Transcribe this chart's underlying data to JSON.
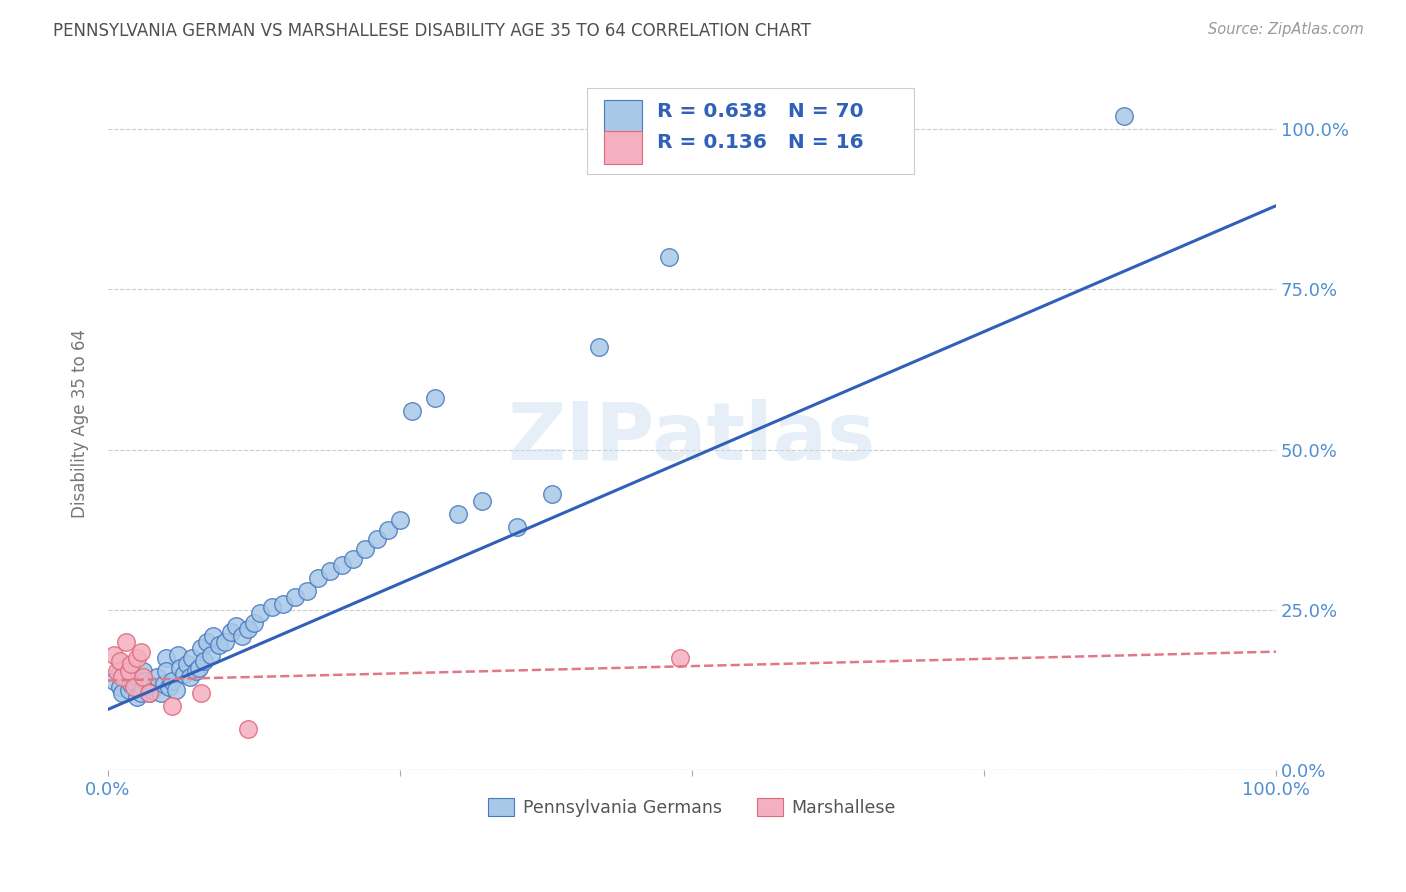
{
  "title": "PENNSYLVANIA GERMAN VS MARSHALLESE DISABILITY AGE 35 TO 64 CORRELATION CHART",
  "source": "Source: ZipAtlas.com",
  "ylabel": "Disability Age 35 to 64",
  "watermark": "ZIPatlas",
  "blue_R": 0.638,
  "blue_N": 70,
  "pink_R": 0.136,
  "pink_N": 16,
  "blue_color": "#a8c8e8",
  "pink_color": "#f4b0c0",
  "blue_edge_color": "#4878c0",
  "pink_edge_color": "#e06878",
  "blue_line_color": "#3060b8",
  "pink_line_color": "#e07888",
  "legend_label_blue": "Pennsylvania Germans",
  "legend_label_pink": "Marshallese",
  "blue_scatter_x": [
    0.005,
    0.01,
    0.01,
    0.012,
    0.015,
    0.015,
    0.018,
    0.02,
    0.02,
    0.022,
    0.025,
    0.025,
    0.028,
    0.03,
    0.03,
    0.032,
    0.035,
    0.035,
    0.038,
    0.04,
    0.042,
    0.045,
    0.048,
    0.05,
    0.05,
    0.052,
    0.055,
    0.058,
    0.06,
    0.062,
    0.065,
    0.068,
    0.07,
    0.072,
    0.075,
    0.078,
    0.08,
    0.082,
    0.085,
    0.088,
    0.09,
    0.095,
    0.1,
    0.105,
    0.11,
    0.115,
    0.12,
    0.125,
    0.13,
    0.14,
    0.15,
    0.16,
    0.17,
    0.18,
    0.19,
    0.2,
    0.21,
    0.22,
    0.23,
    0.24,
    0.25,
    0.26,
    0.28,
    0.3,
    0.32,
    0.35,
    0.38,
    0.42,
    0.48,
    0.87
  ],
  "blue_scatter_y": [
    0.14,
    0.155,
    0.13,
    0.12,
    0.145,
    0.16,
    0.125,
    0.135,
    0.15,
    0.14,
    0.115,
    0.145,
    0.12,
    0.13,
    0.155,
    0.14,
    0.12,
    0.135,
    0.125,
    0.13,
    0.145,
    0.12,
    0.135,
    0.175,
    0.155,
    0.13,
    0.14,
    0.125,
    0.18,
    0.16,
    0.15,
    0.165,
    0.145,
    0.175,
    0.155,
    0.16,
    0.19,
    0.17,
    0.2,
    0.18,
    0.21,
    0.195,
    0.2,
    0.215,
    0.225,
    0.21,
    0.22,
    0.23,
    0.245,
    0.255,
    0.26,
    0.27,
    0.28,
    0.3,
    0.31,
    0.32,
    0.33,
    0.345,
    0.36,
    0.375,
    0.39,
    0.56,
    0.58,
    0.4,
    0.42,
    0.38,
    0.43,
    0.66,
    0.8,
    1.02
  ],
  "pink_scatter_x": [
    0.005,
    0.008,
    0.01,
    0.012,
    0.015,
    0.018,
    0.02,
    0.022,
    0.025,
    0.028,
    0.03,
    0.035,
    0.055,
    0.08,
    0.12,
    0.49
  ],
  "pink_scatter_y": [
    0.18,
    0.155,
    0.17,
    0.145,
    0.2,
    0.155,
    0.165,
    0.13,
    0.175,
    0.185,
    0.145,
    0.12,
    0.1,
    0.12,
    0.065,
    0.175
  ],
  "blue_line_x0": 0.0,
  "blue_line_x1": 1.0,
  "blue_line_y0": 0.095,
  "blue_line_y1": 0.88,
  "pink_line_x0": 0.0,
  "pink_line_x1": 1.0,
  "pink_line_y0": 0.14,
  "pink_line_y1": 0.185,
  "xlim": [
    0.0,
    1.0
  ],
  "ylim": [
    0.0,
    1.08
  ],
  "y_ticks": [
    0.0,
    0.25,
    0.5,
    0.75,
    1.0
  ],
  "y_tick_labels": [
    "0.0%",
    "25.0%",
    "50.0%",
    "75.0%",
    "100.0%"
  ],
  "x_ticks": [
    0.0,
    0.25,
    0.5,
    0.75,
    1.0
  ],
  "grid_color": "#cccccc",
  "title_color": "#505050",
  "axis_color": "#5090d0",
  "background_color": "#ffffff"
}
